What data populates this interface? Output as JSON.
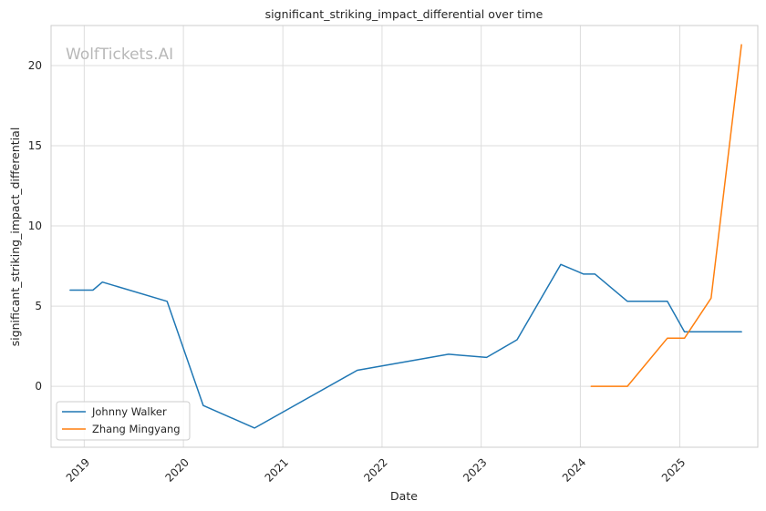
{
  "chart_data": {
    "type": "line",
    "title": "significant_striking_impact_differential over time",
    "xlabel": "Date",
    "ylabel": "significant_striking_impact_differential",
    "watermark": "WolfTickets.AI",
    "x_ticks": [
      "2019",
      "2020",
      "2021",
      "2022",
      "2023",
      "2024",
      "2025"
    ],
    "y_ticks": [
      0,
      5,
      10,
      15,
      20
    ],
    "xlim": [
      "2018-09-01",
      "2025-10-15"
    ],
    "ylim": [
      -3.8,
      22.5
    ],
    "grid": true,
    "legend_position": "lower-left",
    "series": [
      {
        "name": "Johnny Walker",
        "color": "#1f77b4",
        "points": [
          {
            "x": "2018-11-10",
            "y": 6.0
          },
          {
            "x": "2019-02-02",
            "y": 6.0
          },
          {
            "x": "2019-03-09",
            "y": 6.5
          },
          {
            "x": "2019-11-02",
            "y": 5.3
          },
          {
            "x": "2020-03-14",
            "y": -1.2
          },
          {
            "x": "2020-09-19",
            "y": -2.6
          },
          {
            "x": "2021-10-02",
            "y": 1.0
          },
          {
            "x": "2022-09-03",
            "y": 2.0
          },
          {
            "x": "2023-01-21",
            "y": 1.8
          },
          {
            "x": "2023-05-13",
            "y": 2.9
          },
          {
            "x": "2023-10-21",
            "y": 7.6
          },
          {
            "x": "2024-01-13",
            "y": 7.0
          },
          {
            "x": "2024-02-24",
            "y": 7.0
          },
          {
            "x": "2024-06-22",
            "y": 5.3
          },
          {
            "x": "2024-11-16",
            "y": 5.3
          },
          {
            "x": "2025-01-18",
            "y": 3.4
          },
          {
            "x": "2025-08-16",
            "y": 3.4
          }
        ]
      },
      {
        "name": "Zhang Mingyang",
        "color": "#ff7f0e",
        "points": [
          {
            "x": "2024-02-10",
            "y": 0.0
          },
          {
            "x": "2024-06-22",
            "y": 0.0
          },
          {
            "x": "2024-11-16",
            "y": 3.0
          },
          {
            "x": "2025-01-18",
            "y": 3.0
          },
          {
            "x": "2025-04-26",
            "y": 5.5
          },
          {
            "x": "2025-08-16",
            "y": 21.3
          }
        ]
      }
    ]
  }
}
